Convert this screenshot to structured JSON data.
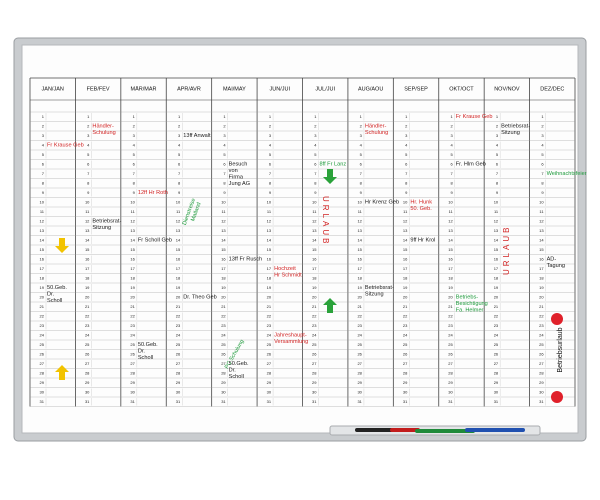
{
  "months": [
    "JAN/JAN",
    "FEB/FEV",
    "MÄR/MAR",
    "APR/AVR",
    "MAI/MAY",
    "JUN/JUI",
    "JUL/JUI",
    "AUG/AOU",
    "SEP/SEP",
    "OKT/OCT",
    "NOV/NOV",
    "DEZ/DEC"
  ],
  "days": [
    1,
    2,
    3,
    4,
    5,
    6,
    7,
    8,
    9,
    10,
    11,
    12,
    13,
    14,
    15,
    16,
    17,
    18,
    19,
    20,
    21,
    22,
    23,
    24,
    25,
    26,
    27,
    28,
    29,
    30,
    31
  ],
  "notes": [
    {
      "lines": [
        "Fr Krause Geb"
      ],
      "color": "red"
    },
    {
      "lines": [
        "Händler-",
        "Schulung"
      ],
      "color": "red"
    },
    {
      "lines": [
        "Betriebsrat-",
        "Sitzung"
      ],
      "color": "black"
    },
    {
      "lines": [
        "12ff Hr Roth"
      ],
      "color": "red"
    },
    {
      "lines": [
        "Fr Scholl Geb"
      ],
      "color": "black"
    },
    {
      "lines": [
        "13ff Anwalt"
      ],
      "color": "black"
    },
    {
      "lines": [
        "Dr. Theo Geb"
      ],
      "color": "black"
    },
    {
      "lines": [
        "Besuch",
        "von",
        "Firma",
        "Jung AG"
      ],
      "color": "black"
    },
    {
      "lines": [
        "13ff Fr Rusch"
      ],
      "color": "black"
    },
    {
      "lines": [
        "50.Geb.",
        "Dr.",
        "Scholl"
      ],
      "color": "black"
    },
    {
      "lines": [
        "8ff Fr Lanz"
      ],
      "color": "green"
    },
    {
      "lines": [
        "Hochzeit",
        "Hr Schmidt"
      ],
      "color": "red"
    },
    {
      "lines": [
        "Jahreshaupt-",
        "Versammlung"
      ],
      "color": "red"
    },
    {
      "lines": [
        "50.Geb.",
        "Dr.",
        "Scholl"
      ],
      "color": "black"
    },
    {
      "lines": [
        "50.Geb.",
        "Dr.",
        "Scholl"
      ],
      "color": "black"
    },
    {
      "lines": [
        "Hr Krenz Geb"
      ],
      "color": "black"
    },
    {
      "lines": [
        "Betriebsrat-",
        "Sitzung"
      ],
      "color": "black"
    },
    {
      "lines": [
        "Händler-",
        "Schulung"
      ],
      "color": "red"
    },
    {
      "lines": [
        "Hr. Hunk",
        "50. Geb."
      ],
      "color": "red"
    },
    {
      "lines": [
        "9ff Hr Krol"
      ],
      "color": "black"
    },
    {
      "lines": [
        "Fr Krause Geb"
      ],
      "color": "red"
    },
    {
      "lines": [
        "Fr. Hlm Geb"
      ],
      "color": "black"
    },
    {
      "lines": [
        "Betriebs-",
        "Besichtigung",
        "Fa. Helmer"
      ],
      "color": "green"
    },
    {
      "lines": [
        "Betriebsrat-",
        "Sitzung"
      ],
      "color": "black"
    },
    {
      "lines": [
        "Weihnachtsfeier"
      ],
      "color": "green"
    },
    {
      "lines": [
        "AD-",
        "Tagung"
      ],
      "color": "black"
    },
    {
      "lines": [
        "URLAUB"
      ],
      "color": "red"
    },
    {
      "lines": [
        "URLAUB"
      ],
      "color": "red"
    },
    {
      "lines": [
        "Dienstreise",
        "Mailand"
      ],
      "color": "green"
    },
    {
      "lines": [
        "PC Schulung"
      ],
      "color": "green"
    }
  ],
  "legend": "Betriebsurlaub"
}
